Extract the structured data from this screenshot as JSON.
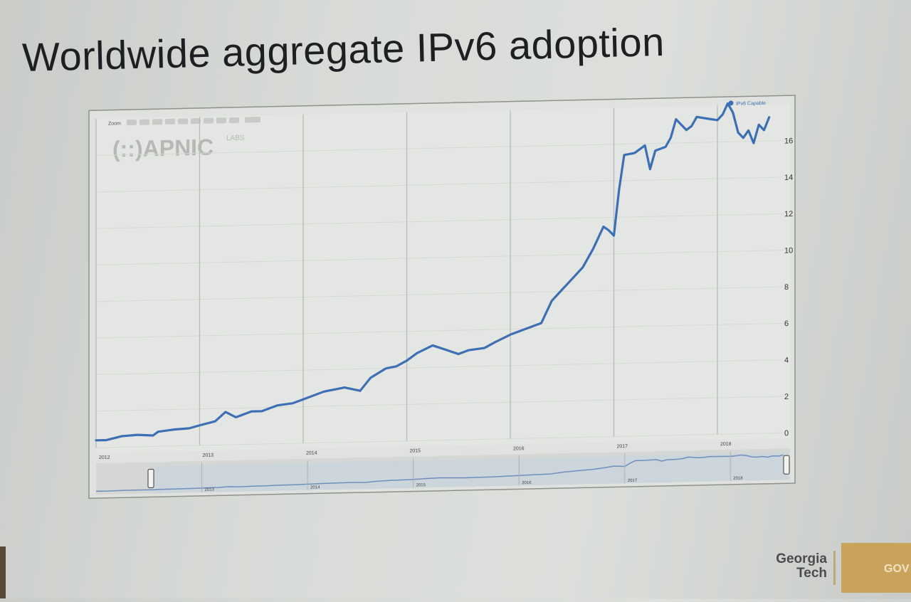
{
  "slide": {
    "title": "Worldwide aggregate IPv6 adoption"
  },
  "chart_data": {
    "type": "line",
    "watermark": "(::)APNIC",
    "watermark_sub": "LABS",
    "zoom_label": "Zoom",
    "legend": [
      {
        "name": "IPv6 Capable",
        "color": "#3d6fb5"
      }
    ],
    "legend_position": "top-right",
    "grid": true,
    "x_ticks": [
      "2012",
      "2013",
      "2014",
      "2015",
      "2016",
      "2017",
      "2018"
    ],
    "y_ticks": [
      0,
      2,
      4,
      6,
      8,
      10,
      12,
      14,
      16
    ],
    "xlim": [
      2012.0,
      2018.55
    ],
    "ylim": [
      0,
      18
    ],
    "series": [
      {
        "name": "IPv6 Capable",
        "color": "#3d6fb5",
        "x": [
          2012.0,
          2012.1,
          2012.25,
          2012.4,
          2012.55,
          2012.6,
          2012.75,
          2012.9,
          2013.0,
          2013.15,
          2013.25,
          2013.35,
          2013.5,
          2013.6,
          2013.75,
          2013.9,
          2014.0,
          2014.2,
          2014.4,
          2014.55,
          2014.65,
          2014.8,
          2014.9,
          2015.0,
          2015.1,
          2015.25,
          2015.4,
          2015.5,
          2015.6,
          2015.75,
          2015.85,
          2016.0,
          2016.15,
          2016.3,
          2016.4,
          2016.5,
          2016.6,
          2016.7,
          2016.8,
          2016.9,
          2016.95,
          2017.0,
          2017.05,
          2017.1,
          2017.2,
          2017.3,
          2017.35,
          2017.4,
          2017.5,
          2017.55,
          2017.6,
          2017.7,
          2017.75,
          2017.8,
          2017.9,
          2018.0,
          2018.05,
          2018.1,
          2018.15,
          2018.2,
          2018.25,
          2018.3,
          2018.35,
          2018.4,
          2018.45,
          2018.5
        ],
        "values": [
          0.4,
          0.4,
          0.6,
          0.65,
          0.6,
          0.8,
          0.9,
          0.95,
          1.1,
          1.3,
          1.8,
          1.5,
          1.8,
          1.8,
          2.1,
          2.2,
          2.4,
          2.8,
          3.0,
          2.8,
          3.5,
          4.0,
          4.1,
          4.4,
          4.8,
          5.2,
          4.9,
          4.7,
          4.9,
          5.0,
          5.3,
          5.7,
          6.0,
          6.3,
          7.5,
          8.1,
          8.7,
          9.3,
          10.3,
          11.5,
          11.3,
          11.0,
          13.5,
          15.4,
          15.5,
          15.9,
          14.6,
          15.6,
          15.8,
          16.3,
          17.3,
          16.7,
          16.9,
          17.4,
          17.3,
          17.2,
          17.5,
          18.1,
          17.6,
          16.5,
          16.2,
          16.6,
          15.9,
          16.9,
          16.6,
          17.3
        ]
      }
    ],
    "navigator": {
      "x_ticks": [
        "2013",
        "2014",
        "2015",
        "2016",
        "2017",
        "2018"
      ]
    }
  },
  "branding": {
    "logo_line1": "Georgia",
    "logo_line2": "Tech",
    "side_text": "GOV"
  }
}
